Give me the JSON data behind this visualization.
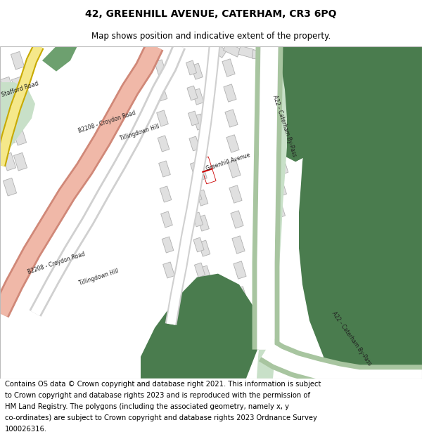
{
  "title": "42, GREENHILL AVENUE, CATERHAM, CR3 6PQ",
  "subtitle": "Map shows position and indicative extent of the property.",
  "footer": "Contains OS data © Crown copyright and database right 2021. This information is subject to Crown copyright and database rights 2023 and is reproduced with the permission of HM Land Registry. The polygons (including the associated geometry, namely x, y co-ordinates) are subject to Crown copyright and database rights 2023 Ordnance Survey 100026316.",
  "background_color": "#ffffff",
  "map_bg": "#f0f0f0",
  "title_fontsize": 10,
  "subtitle_fontsize": 8.5,
  "footer_fontsize": 7.2,
  "colors": {
    "green_dark": "#4a7c4e",
    "green_medium": "#6da06f",
    "green_light": "#a8c5a0",
    "green_pale": "#c8e0c8",
    "road_major_fill": "#f0b8a8",
    "road_major_edge": "#d08878",
    "road_yellow_fill": "#f5e88a",
    "road_yellow_edge": "#c8aa00",
    "road_white": "#ffffff",
    "road_gray": "#d0d0d0",
    "building_fill": "#e0e0e0",
    "building_edge": "#b0b0b0",
    "highlight_red": "#cc0000",
    "label_dark": "#222222"
  }
}
